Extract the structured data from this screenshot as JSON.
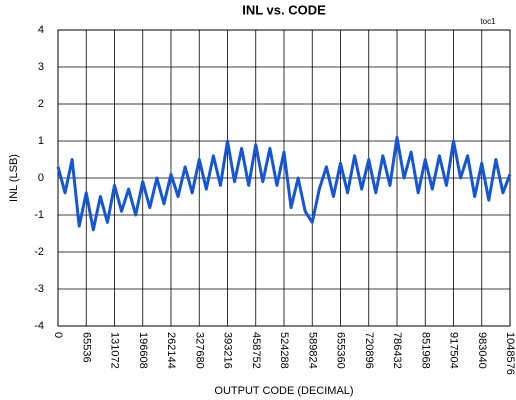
{
  "chart_data": {
    "type": "line",
    "title": "INL vs. CODE",
    "annotation": "toc1",
    "x_label": "OUTPUT CODE (DECIMAL)",
    "y_label": "INL (LSB)",
    "x": [
      0,
      16384,
      32768,
      49152,
      65536,
      81920,
      98304,
      114688,
      131072,
      147456,
      163840,
      180224,
      196608,
      212992,
      229376,
      245760,
      262144,
      278528,
      294912,
      311296,
      327680,
      344064,
      360448,
      376832,
      393216,
      409600,
      425984,
      442368,
      458752,
      475136,
      491520,
      507904,
      524288,
      540672,
      557056,
      573440,
      589824,
      606208,
      622592,
      638976,
      655360,
      671744,
      688128,
      704512,
      720896,
      737280,
      753664,
      770048,
      786432,
      802816,
      819200,
      835584,
      851968,
      868352,
      884736,
      901120,
      917504,
      933888,
      950272,
      966656,
      983040,
      999424,
      1015808,
      1032192,
      1048576
    ],
    "series": [
      {
        "name": "INL",
        "color": "#1456d6",
        "values": [
          0.3,
          -0.4,
          0.5,
          -1.3,
          -0.4,
          -1.4,
          -0.5,
          -1.2,
          -0.2,
          -0.9,
          -0.3,
          -1.0,
          -0.1,
          -0.8,
          0.0,
          -0.7,
          0.1,
          -0.5,
          0.3,
          -0.4,
          0.5,
          -0.3,
          0.6,
          -0.2,
          1.0,
          -0.1,
          0.8,
          -0.2,
          0.9,
          -0.1,
          0.8,
          -0.2,
          0.7,
          -0.8,
          0.0,
          -0.9,
          -1.2,
          -0.3,
          0.3,
          -0.5,
          0.4,
          -0.4,
          0.6,
          -0.3,
          0.5,
          -0.4,
          0.6,
          -0.2,
          1.1,
          0.0,
          0.7,
          -0.4,
          0.5,
          -0.3,
          0.6,
          -0.2,
          1.0,
          0.0,
          0.6,
          -0.5,
          0.4,
          -0.6,
          0.5,
          -0.4,
          0.1
        ]
      }
    ],
    "xlim": [
      0,
      1048576
    ],
    "xticks": [
      0,
      65536,
      131072,
      196608,
      262144,
      327680,
      393216,
      458752,
      524288,
      589824,
      655360,
      720896,
      786432,
      851968,
      917504,
      983040,
      1048576
    ],
    "ylim": [
      -4,
      4
    ],
    "yticks": [
      -4,
      -3,
      -2,
      -1,
      0,
      1,
      2,
      3,
      4
    ],
    "grid": true
  }
}
